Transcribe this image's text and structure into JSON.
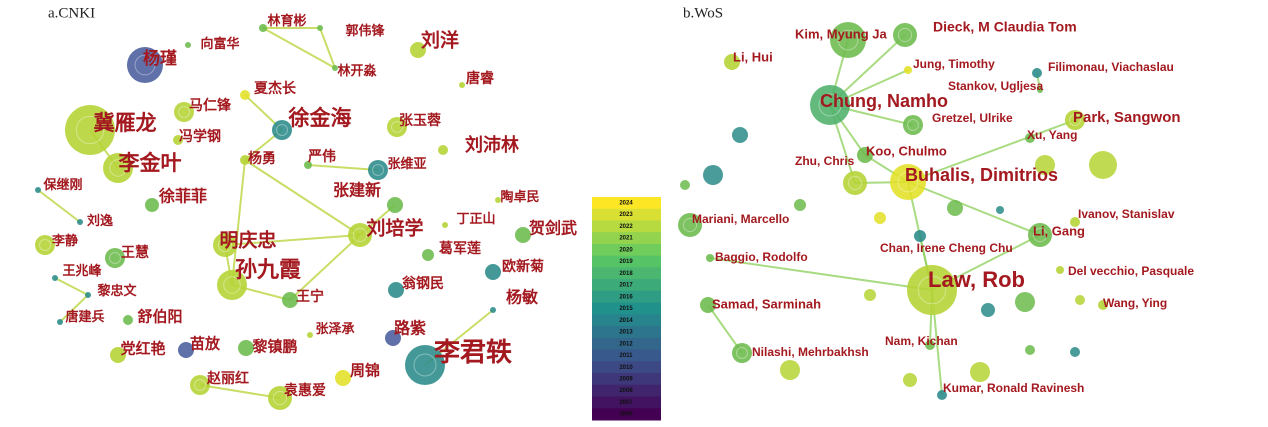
{
  "panels": [
    {
      "label": "a.CNKI",
      "nodes": [
        "杨瑾",
        "向富华",
        "林育彬",
        "郭伟锋",
        "林开淼",
        "刘洋",
        "唐睿",
        "夏杰长",
        "马仁锋",
        "徐金海",
        "冀雁龙",
        "冯学钢",
        "张玉蓉",
        "刘沛林",
        "李金叶",
        "杨勇",
        "严伟",
        "张维亚",
        "保继刚",
        "徐菲菲",
        "张建新",
        "陶卓民",
        "刘逸",
        "刘培学",
        "丁正山",
        "贺剑武",
        "明庆忠",
        "李静",
        "王慧",
        "葛军莲",
        "孙九霞",
        "王兆峰",
        "欧新菊",
        "黎忠文",
        "翁钢民",
        "王宁",
        "杨敏",
        "唐建兵",
        "舒伯阳",
        "张泽承",
        "路紫",
        "苗放",
        "党红艳",
        "黎镇鹏",
        "李君轶",
        "周锦",
        "赵丽红",
        "袁惠爱"
      ]
    },
    {
      "label": "b.WoS",
      "nodes": [
        "Kim, Myung Ja",
        "Dieck, M Claudia Tom",
        "Li, Hui",
        "Jung, Timothy",
        "Filimonau, Viachaslau",
        "Stankov, Ugljesa",
        "Chung, Namho",
        "Gretzel, Ulrike",
        "Park, Sangwon",
        "Xu, Yang",
        "Koo, Chulmo",
        "Zhu, Chris",
        "Buhalis, Dimitrios",
        "Mariani, Marcello",
        "Ivanov, Stanislav",
        "Li, Gang",
        "Chan, Irene Cheng Chu",
        "Baggio, Rodolfo",
        "Law, Rob",
        "Del vecchio, Pasquale",
        "Samad, Sarminah",
        "Wang, Ying",
        "Nam, Kichan",
        "Nilashi, Mehrbakhsh",
        "Kumar, Ronald Ravinesh"
      ]
    }
  ],
  "legend": {
    "years": [
      "2024",
      "2023",
      "2022",
      "2021",
      "2020",
      "2019",
      "2018",
      "2017",
      "2016",
      "2015",
      "2014",
      "2013",
      "2012",
      "2011",
      "2010",
      "2009",
      "2008",
      "2007",
      "2006"
    ]
  }
}
